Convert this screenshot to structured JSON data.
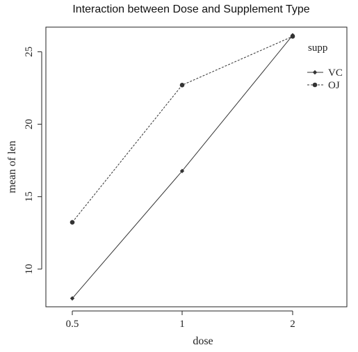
{
  "chart_data": {
    "type": "line",
    "title": "Interaction between Dose and Supplement Type",
    "xlabel": "dose",
    "ylabel": "mean of  len",
    "categories": [
      "0.5",
      "1",
      "2"
    ],
    "yticks": [
      "10",
      "15",
      "20",
      "25"
    ],
    "ylim": [
      7.4,
      26.7
    ],
    "legend_title": "supp",
    "legend_position": "top-right",
    "grid": false,
    "series": [
      {
        "name": "VC",
        "values": [
          7.98,
          16.77,
          26.14
        ],
        "linestyle": "solid",
        "marker": "diamond",
        "color": "#333333"
      },
      {
        "name": "OJ",
        "values": [
          13.23,
          22.7,
          26.06
        ],
        "linestyle": "dashed",
        "marker": "circle",
        "color": "#333333"
      }
    ]
  }
}
